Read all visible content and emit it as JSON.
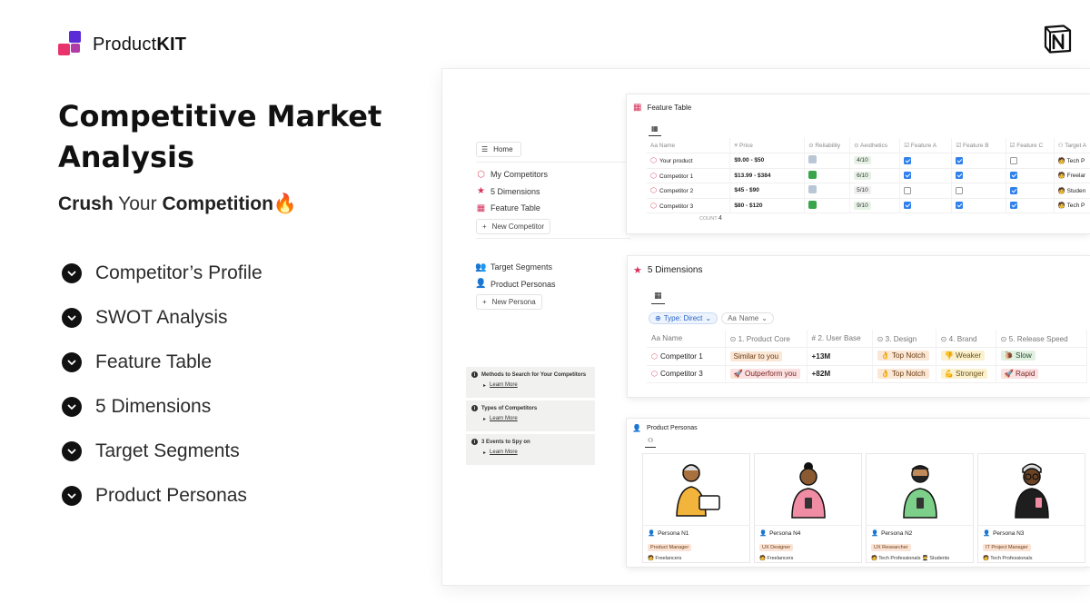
{
  "brand": {
    "name_plain": "Product",
    "name_bold": "KIT"
  },
  "hero": {
    "title": "Competitive Market Analysis",
    "subtitle": {
      "w1": "Crush",
      "w2": "Your",
      "w3": "Competition",
      "emoji": "🔥"
    },
    "bullets": [
      "Competitor’s Profile",
      "SWOT Analysis",
      "Feature Table",
      "5 Dimensions",
      "Target Segments",
      "Product Personas"
    ]
  },
  "notion": {
    "home_label": "Home",
    "nav_group1": [
      "My Competitors",
      "5 Dimensions",
      "Feature Table"
    ],
    "new_competitor": "New Competitor",
    "nav_group2": [
      "Target Segments",
      "Product Personas"
    ],
    "new_persona": "New Persona",
    "callouts": [
      {
        "title": "Methods to Search for Your Competitors",
        "link": "Learn More"
      },
      {
        "title": "Types of Competitors",
        "link": "Learn More"
      },
      {
        "title": "3 Events to Spy on",
        "link": "Learn More"
      }
    ],
    "feature_table": {
      "title": "Feature Table",
      "columns": [
        "Name",
        "Price",
        "Reliability",
        "Aesthetics",
        "Feature A",
        "Feature B",
        "Feature C",
        "Target A"
      ],
      "rows": [
        {
          "name": "Your product",
          "price": "$9.00 - $50",
          "aesthetics": "4/10",
          "a": true,
          "b": true,
          "c": false,
          "target": "Tech P"
        },
        {
          "name": "Competitor 1",
          "price": "$13.99 - $384",
          "aesthetics": "6/10",
          "a": true,
          "b": true,
          "c": true,
          "target": "Freelar"
        },
        {
          "name": "Competitor 2",
          "price": "$45 - $90",
          "aesthetics": "5/10",
          "a": false,
          "b": false,
          "c": true,
          "target": "Studen"
        },
        {
          "name": "Competitor 3",
          "price": "$80 - $120",
          "aesthetics": "9/10",
          "a": true,
          "b": true,
          "c": true,
          "target": "Tech P"
        }
      ],
      "count_label": "COUNT",
      "count_value": "4"
    },
    "dimensions": {
      "title": "5 Dimensions",
      "filter_type": "Type: Direct",
      "filter_name": "Name",
      "columns": [
        "Name",
        "1. Product Core",
        "2. User Base",
        "3. Design",
        "4. Brand",
        "5. Release Speed"
      ],
      "rows": [
        {
          "name": "Competitor 1",
          "core": "Similar to you",
          "users": "+13M",
          "design": "Top Notch",
          "brand": "Weaker",
          "speed": "Slow"
        },
        {
          "name": "Competitor 3",
          "core": "Outperform you",
          "users": "+82M",
          "design": "Top Notch",
          "brand": "Stronger",
          "speed": "Rapid"
        }
      ]
    },
    "personas": {
      "title": "Product Personas",
      "cards": [
        {
          "name": "Persona N1",
          "role": "Product Manager",
          "segments": "Freelancers",
          "segments2": ""
        },
        {
          "name": "Persona N4",
          "role": "UX Designer",
          "segments": "Freelancers",
          "segments2": ""
        },
        {
          "name": "Persona N2",
          "role": "UX Researcher",
          "segments": "Tech Professionals",
          "segments2": "Students"
        },
        {
          "name": "Persona N3",
          "role": "IT Project Manager",
          "segments": "Tech Professionals",
          "segments2": ""
        }
      ]
    }
  },
  "colors": {
    "accent_pink": "#e8336d",
    "accent_purple": "#5b2bd6",
    "notion_blue": "#2f80ed"
  }
}
